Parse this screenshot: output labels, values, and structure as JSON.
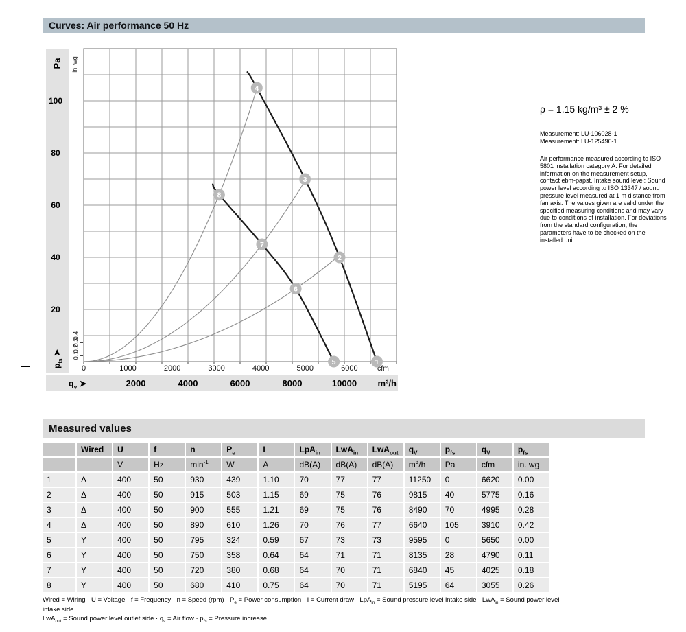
{
  "header": {
    "title": "Curves: Air performance 50 Hz"
  },
  "side_note": {
    "density": "ρ = 1.15 kg/m³ ± 2 %",
    "measurements": [
      "Measurement: LU-106028-1",
      "Measurement: LU-125496-1"
    ],
    "note": "Air performance measured according to ISO 5801 installation category A. For detailed information on the measurement setup, contact ebm-papst. Intake sound level: Sound power level according to ISO 13347 / sound pressure level measured at 1 m distance from fan axis. The values given are valid under the specified measuring conditions and may vary due to conditions of installation. For deviations from the standard configuration, the parameters have to be checked on the installed unit."
  },
  "axis_labels": {
    "pa": "Pa",
    "inwg": "in. wg",
    "cfm": "cfm",
    "m3h": "m³/h",
    "pfs_rich": [
      {
        "t": "p"
      },
      {
        "sub": "fs"
      },
      {
        "t": "  ➤"
      }
    ],
    "qv_rich": [
      {
        "t": "q"
      },
      {
        "sub": "v"
      },
      {
        "t": "  ➤"
      }
    ]
  },
  "chart_data": {
    "type": "line",
    "title": "Curves: Air performance 50 Hz",
    "x_axis": {
      "label": "qv (air flow)",
      "unit_primary": "m³/h",
      "unit_secondary": "cfm",
      "m3h_ticks": [
        2000,
        4000,
        6000,
        8000,
        10000
      ],
      "cfm_ticks": [
        0,
        1000,
        2000,
        3000,
        4000,
        5000,
        6000
      ],
      "range_m3h": [
        0,
        12000
      ]
    },
    "y_axis": {
      "label": "pfs (pressure increase)",
      "unit_primary": "Pa",
      "unit_secondary": "in. wg",
      "pa_ticks": [
        20,
        40,
        60,
        80,
        100
      ],
      "inwg_ticks": [
        0.1,
        0.2,
        0.3,
        0.4
      ],
      "range_pa": [
        0,
        120
      ]
    },
    "grid": true,
    "series": [
      {
        "name": "Fan curve, Delta wiring",
        "wiring": "Δ",
        "start": {
          "qv_m3h": 6280,
          "pfs_pa": 111
        },
        "points": [
          {
            "label": "4",
            "qv_m3h": 6640,
            "pfs_pa": 105
          },
          {
            "label": "3",
            "qv_m3h": 8490,
            "pfs_pa": 70
          },
          {
            "label": "2",
            "qv_m3h": 9815,
            "pfs_pa": 40
          },
          {
            "label": "1",
            "qv_m3h": 11250,
            "pfs_pa": 0
          }
        ]
      },
      {
        "name": "Fan curve, Y wiring",
        "wiring": "Y",
        "start": {
          "qv_m3h": 4950,
          "pfs_pa": 68
        },
        "points": [
          {
            "label": "8",
            "qv_m3h": 5195,
            "pfs_pa": 64
          },
          {
            "label": "7",
            "qv_m3h": 6840,
            "pfs_pa": 45
          },
          {
            "label": "6",
            "qv_m3h": 8135,
            "pfs_pa": 28
          },
          {
            "label": "5",
            "qv_m3h": 9595,
            "pfs_pa": 0
          }
        ]
      }
    ],
    "system_curves": [
      {
        "through_points": [
          "8",
          "4"
        ],
        "q_ref_m3h": 5195,
        "p_ref_pa": 64,
        "q_end_m3h": 6640
      },
      {
        "through_points": [
          "7",
          "3"
        ],
        "q_ref_m3h": 6840,
        "p_ref_pa": 45,
        "q_end_m3h": 8490
      },
      {
        "through_points": [
          "6",
          "2"
        ],
        "q_ref_m3h": 8135,
        "p_ref_pa": 28,
        "q_end_m3h": 9815
      }
    ]
  },
  "table": {
    "title": "Measured values",
    "columns": [
      [],
      [
        {
          "t": "Wired"
        }
      ],
      [
        {
          "t": "U"
        }
      ],
      [
        {
          "t": "f"
        }
      ],
      [
        {
          "t": "n"
        }
      ],
      [
        {
          "t": "P"
        },
        {
          "sub": "e"
        }
      ],
      [
        {
          "t": "I"
        }
      ],
      [
        {
          "t": "LpA"
        },
        {
          "sub": "in"
        }
      ],
      [
        {
          "t": "LwA"
        },
        {
          "sub": "in"
        }
      ],
      [
        {
          "t": "LwA"
        },
        {
          "sub": "out"
        }
      ],
      [
        {
          "t": "q"
        },
        {
          "sub": "V"
        }
      ],
      [
        {
          "t": "p"
        },
        {
          "sub": "fs"
        }
      ],
      [
        {
          "t": "q"
        },
        {
          "sub": "V"
        }
      ],
      [
        {
          "t": "p"
        },
        {
          "sub": "fs"
        }
      ]
    ],
    "units": [
      [],
      [],
      [
        {
          "t": "V"
        }
      ],
      [
        {
          "t": "Hz"
        }
      ],
      [
        {
          "t": "min"
        },
        {
          "sup": "-1"
        }
      ],
      [
        {
          "t": "W"
        }
      ],
      [
        {
          "t": "A"
        }
      ],
      [
        {
          "t": "dB(A)"
        }
      ],
      [
        {
          "t": "dB(A)"
        }
      ],
      [
        {
          "t": "dB(A)"
        }
      ],
      [
        {
          "t": "m"
        },
        {
          "sup": "3"
        },
        {
          "t": "/h"
        }
      ],
      [
        {
          "t": "Pa"
        }
      ],
      [
        {
          "t": "cfm"
        }
      ],
      [
        {
          "t": "in. wg"
        }
      ]
    ],
    "rows": [
      [
        "1",
        "Δ",
        "400",
        "50",
        "930",
        "439",
        "1.10",
        "70",
        "77",
        "77",
        "11250",
        "0",
        "6620",
        "0.00"
      ],
      [
        "2",
        "Δ",
        "400",
        "50",
        "915",
        "503",
        "1.15",
        "69",
        "75",
        "76",
        "9815",
        "40",
        "5775",
        "0.16"
      ],
      [
        "3",
        "Δ",
        "400",
        "50",
        "900",
        "555",
        "1.21",
        "69",
        "75",
        "76",
        "8490",
        "70",
        "4995",
        "0.28"
      ],
      [
        "4",
        "Δ",
        "400",
        "50",
        "890",
        "610",
        "1.26",
        "70",
        "76",
        "77",
        "6640",
        "105",
        "3910",
        "0.42"
      ],
      [
        "5",
        "Y",
        "400",
        "50",
        "795",
        "324",
        "0.59",
        "67",
        "73",
        "73",
        "9595",
        "0",
        "5650",
        "0.00"
      ],
      [
        "6",
        "Y",
        "400",
        "50",
        "750",
        "358",
        "0.64",
        "64",
        "71",
        "71",
        "8135",
        "28",
        "4790",
        "0.11"
      ],
      [
        "7",
        "Y",
        "400",
        "50",
        "720",
        "380",
        "0.68",
        "64",
        "70",
        "71",
        "6840",
        "45",
        "4025",
        "0.18"
      ],
      [
        "8",
        "Y",
        "400",
        "50",
        "680",
        "410",
        "0.75",
        "64",
        "70",
        "71",
        "5195",
        "64",
        "3055",
        "0.26"
      ]
    ]
  },
  "footer": {
    "line1": [
      {
        "t": "Wired = Wiring · U = Voltage · f = Frequency · n = Speed (rpm) · P"
      },
      {
        "sub": "e"
      },
      {
        "t": " = Power consumption · I = Current draw · LpA"
      },
      {
        "sub": "in"
      },
      {
        "t": " = Sound pressure level intake side · LwA"
      },
      {
        "sub": "in"
      },
      {
        "t": " = Sound power level intake side"
      }
    ],
    "line2": [
      {
        "t": "LwA"
      },
      {
        "sub": "out"
      },
      {
        "t": " = Sound power level outlet side · q"
      },
      {
        "sub": "v"
      },
      {
        "t": " = Air flow · p"
      },
      {
        "sub": "fs"
      },
      {
        "t": " = Pressure increase"
      }
    ]
  },
  "colors": {
    "title_bar_bg": "#b4c1ca",
    "section_bar_bg": "#dbdbdb",
    "axis_band_bg": "#e2e2e2",
    "table_header_bg": "#c7c7c7",
    "table_row_bg": "#ebebeb",
    "grid": "#9b9b9b",
    "frame": "#8a8a8a",
    "curve": "#1b1b1b",
    "system_curve": "#8d8d8d",
    "marker": "#b9b9b9",
    "marker_text": "#ffffff"
  }
}
